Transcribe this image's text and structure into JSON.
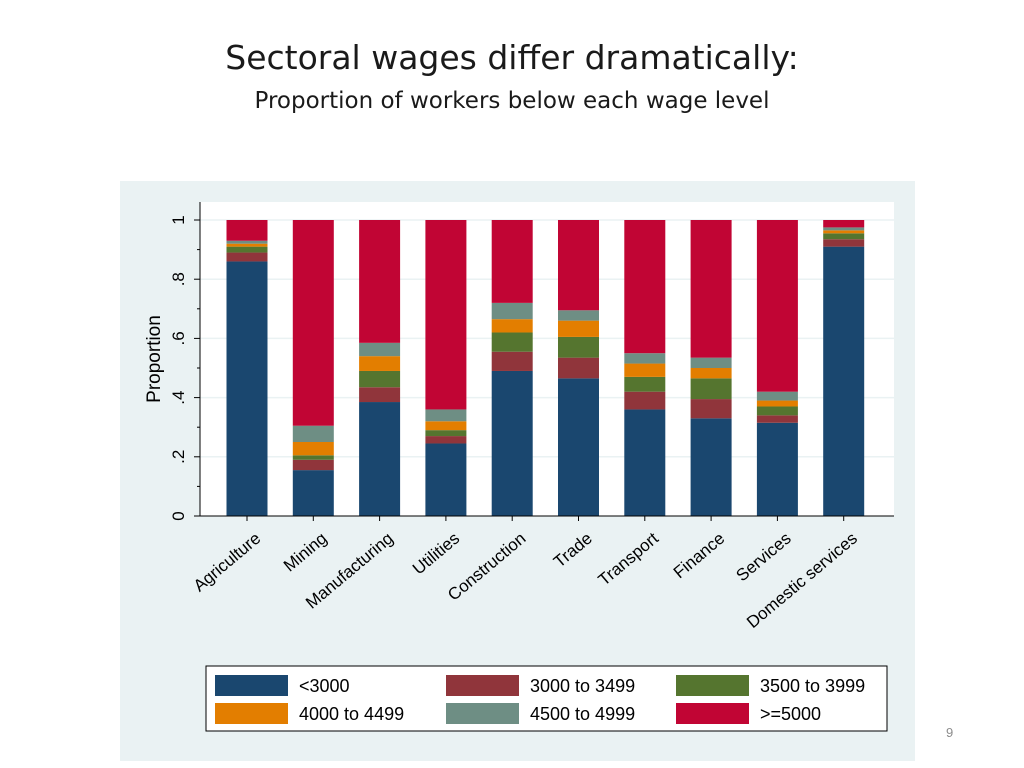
{
  "slide": {
    "title": "Sectoral wages differ dramatically:",
    "subtitle": "Proportion of workers below each wage level",
    "page_number": "9"
  },
  "chart_data": {
    "type": "bar",
    "stacked": true,
    "title": "",
    "xlabel": "",
    "ylabel": "Proportion",
    "ylim": [
      0,
      1
    ],
    "yticks": [
      0,
      0.2,
      0.4,
      0.6,
      0.8,
      1
    ],
    "ytick_labels": [
      "0",
      ".2",
      ".4",
      ".6",
      ".8",
      "1"
    ],
    "grid": true,
    "legend_position": "bottom",
    "categories": [
      "Agriculture",
      "Mining",
      "Manufacturing",
      "Utilities",
      "Construction",
      "Trade",
      "Transport",
      "Finance",
      "Services",
      "Domestic services"
    ],
    "series": [
      {
        "name": "<3000",
        "color": "#1a476f",
        "values": [
          0.86,
          0.155,
          0.385,
          0.245,
          0.49,
          0.465,
          0.36,
          0.33,
          0.315,
          0.91
        ]
      },
      {
        "name": "3000 to 3499",
        "color": "#90353b",
        "values": [
          0.03,
          0.035,
          0.05,
          0.025,
          0.065,
          0.07,
          0.06,
          0.065,
          0.025,
          0.025
        ]
      },
      {
        "name": "3500 to 3999",
        "color": "#55752f",
        "values": [
          0.02,
          0.015,
          0.055,
          0.02,
          0.065,
          0.07,
          0.05,
          0.07,
          0.03,
          0.02
        ]
      },
      {
        "name": "4000 to 4499",
        "color": "#e37e00",
        "values": [
          0.01,
          0.045,
          0.05,
          0.03,
          0.045,
          0.055,
          0.045,
          0.035,
          0.02,
          0.01
        ]
      },
      {
        "name": "4500 to 4999",
        "color": "#6e8e84",
        "values": [
          0.01,
          0.055,
          0.045,
          0.04,
          0.055,
          0.035,
          0.035,
          0.035,
          0.03,
          0.01
        ]
      },
      {
        "name": ">=5000",
        "color": "#c10534",
        "values": [
          0.07,
          0.695,
          0.415,
          0.64,
          0.28,
          0.305,
          0.45,
          0.465,
          0.58,
          0.025
        ]
      }
    ]
  }
}
